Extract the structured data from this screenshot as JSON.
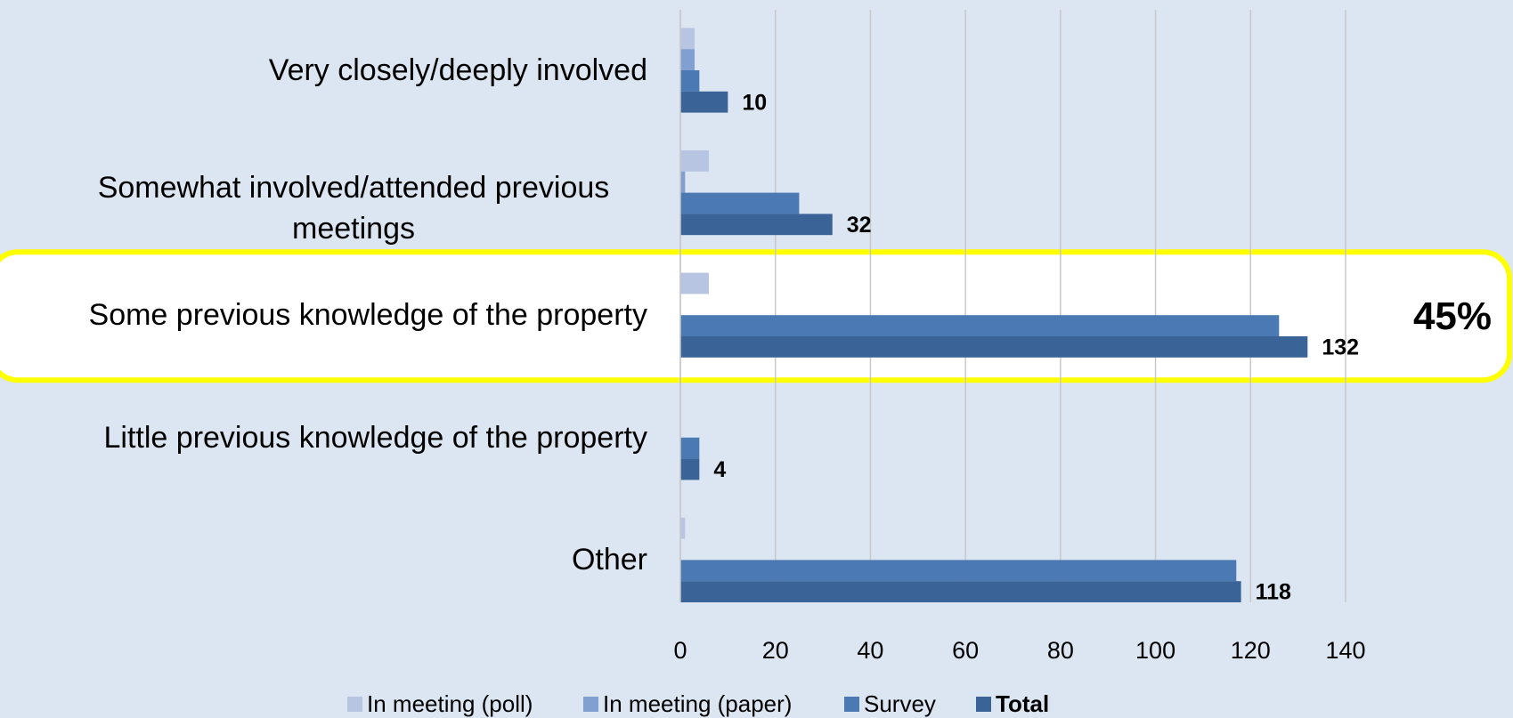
{
  "chart_data": {
    "type": "hbar",
    "categories": [
      "Very closely/deeply involved",
      "Somewhat involved/attended previous meetings",
      "Some previous knowledge of the property",
      "Little previous knowledge of the property",
      "Other"
    ],
    "series": [
      {
        "name": "In meeting (poll)",
        "color": "#b7c5e2",
        "values": [
          3,
          6,
          6,
          0,
          1
        ]
      },
      {
        "name": "In meeting (paper)",
        "color": "#819fd1",
        "values": [
          3,
          1,
          0,
          0,
          0
        ]
      },
      {
        "name": "Survey",
        "color": "#4a79b4",
        "values": [
          4,
          25,
          126,
          4,
          117
        ]
      },
      {
        "name": "Total",
        "color": "#3a6498",
        "values": [
          10,
          32,
          132,
          4,
          118
        ],
        "labels": true
      }
    ],
    "xlim": [
      0,
      140
    ],
    "xticks": [
      0,
      20,
      40,
      60,
      80,
      100,
      120,
      140
    ],
    "grid": true,
    "highlight": 2,
    "annotation": "45%",
    "legend": "bottom"
  }
}
